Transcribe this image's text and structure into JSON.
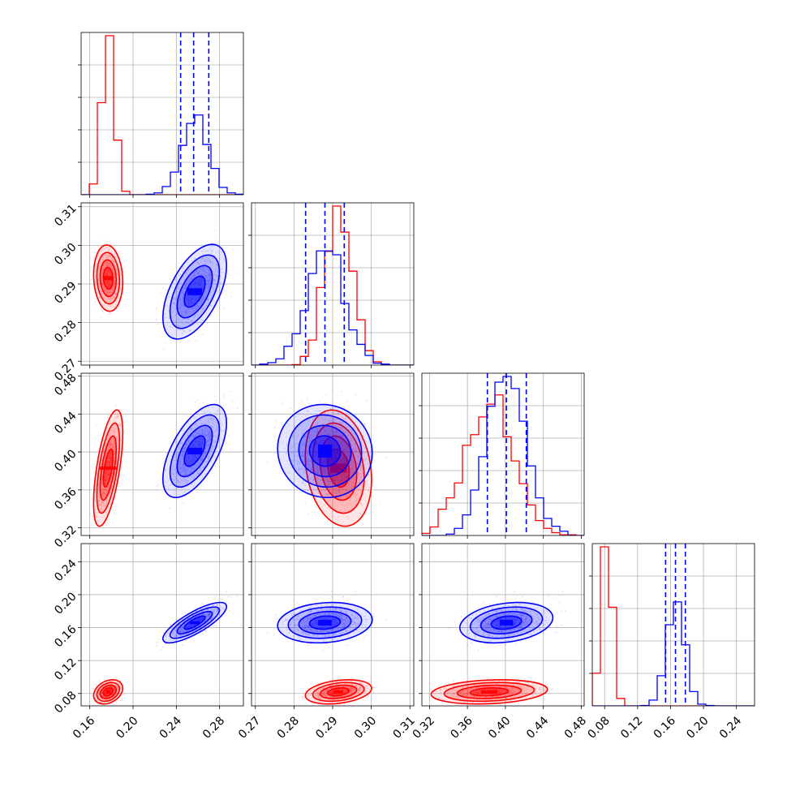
{
  "chart_data": {
    "type": "corner",
    "grid": true,
    "colors": {
      "red": "#ff0000",
      "blue": "#0000ff"
    },
    "parameters": [
      {
        "ticks": [
          0.16,
          0.2,
          0.24,
          0.28
        ],
        "tick_labels": [
          "0.16",
          "0.20",
          "0.24",
          "0.28"
        ],
        "lim": [
          0.152,
          0.302
        ]
      },
      {
        "ticks": [
          0.27,
          0.28,
          0.29,
          0.3,
          0.31
        ],
        "tick_labels": [
          "0.27",
          "0.28",
          "0.29",
          "0.30",
          "0.31"
        ],
        "lim": [
          0.269,
          0.311
        ]
      },
      {
        "ticks": [
          0.32,
          0.36,
          0.4,
          0.44,
          0.48
        ],
        "tick_labels": [
          "0.32",
          "0.36",
          "0.40",
          "0.44",
          "0.48"
        ],
        "lim": [
          0.312,
          0.483
        ]
      },
      {
        "ticks": [
          0.08,
          0.12,
          0.16,
          0.2,
          0.24
        ],
        "tick_labels": [
          "0.08",
          "0.12",
          "0.16",
          "0.20",
          "0.24"
        ],
        "lim": [
          0.065,
          0.262
        ]
      }
    ],
    "series": [
      {
        "color": "#ff0000",
        "mean": [
          0.177,
          0.2915,
          0.383,
          0.082
        ],
        "std": [
          0.0055,
          0.0035,
          0.025,
          0.006
        ],
        "corr": [
          [
            1,
            -0.1,
            0.6,
            0.3
          ],
          [
            -0.1,
            1,
            -0.2,
            0.3
          ],
          [
            0.6,
            -0.2,
            1,
            0.2
          ],
          [
            0.3,
            0.3,
            0.2,
            1
          ]
        ],
        "quantile_lines": []
      },
      {
        "color": "#0000ff",
        "mean": [
          0.257,
          0.288,
          0.401,
          0.166
        ],
        "std": [
          0.012,
          0.005,
          0.02,
          0.01
        ],
        "corr": [
          [
            1,
            0.55,
            0.6,
            0.8
          ],
          [
            0.55,
            1,
            -0.05,
            0.15
          ],
          [
            0.6,
            -0.05,
            1,
            0.25
          ],
          [
            0.8,
            0.15,
            0.25,
            1
          ]
        ],
        "quantile_lines": [
          [
            0.244,
            0.256,
            0.27
          ],
          [
            0.283,
            0.288,
            0.293
          ],
          [
            0.381,
            0.401,
            0.422
          ],
          [
            0.154,
            0.166,
            0.178
          ]
        ]
      }
    ]
  }
}
